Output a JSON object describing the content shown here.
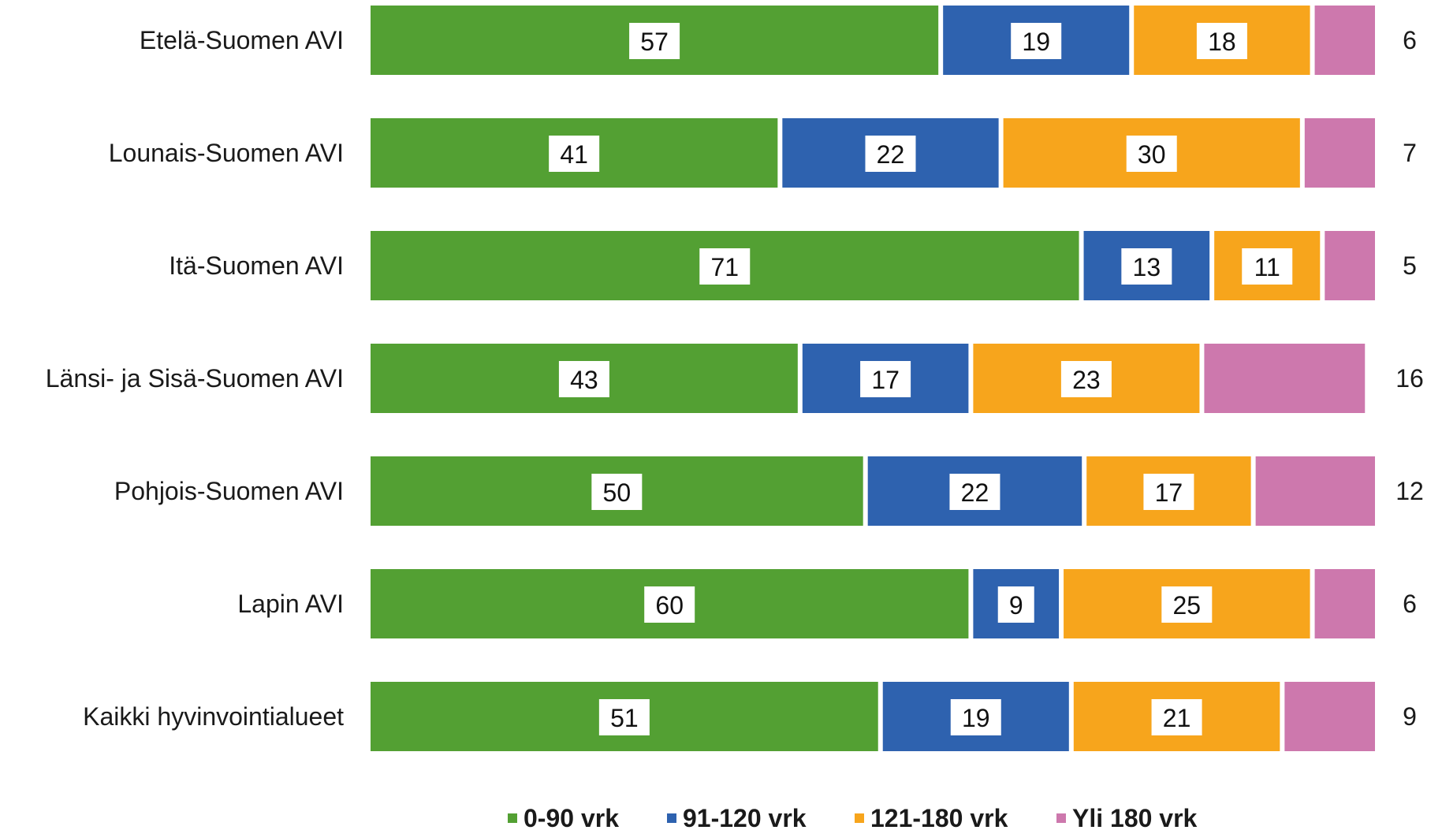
{
  "chart_data": {
    "type": "bar",
    "orientation": "horizontal",
    "stacked": "percent",
    "title": "",
    "xlabel": "",
    "ylabel": "",
    "xlim": [
      0,
      100
    ],
    "grid": false,
    "legend_position": "bottom",
    "categories": [
      "Etelä-Suomen AVI",
      "Lounais-Suomen AVI",
      "Itä-Suomen AVI",
      "Länsi- ja Sisä-Suomen AVI",
      "Pohjois-Suomen AVI",
      "Lapin AVI",
      "Kaikki hyvinvointialueet"
    ],
    "series": [
      {
        "name": "0-90 vrk",
        "color": "#53a033",
        "values": [
          57,
          41,
          71,
          43,
          50,
          60,
          51
        ],
        "labels": [
          "57",
          "41",
          "71",
          "43",
          "50",
          "60",
          "51"
        ],
        "label_position": "inside"
      },
      {
        "name": "91-120 vrk",
        "color": "#2e62af",
        "values": [
          19,
          22,
          13,
          17,
          22,
          9,
          19
        ],
        "labels": [
          "19",
          "22",
          "13",
          "17",
          "22",
          "9",
          "19"
        ],
        "label_position": "inside"
      },
      {
        "name": "121-180 vrk",
        "color": "#f7a51c",
        "values": [
          18,
          30,
          11,
          23,
          17,
          25,
          21
        ],
        "labels": [
          "18",
          "30",
          "11",
          "23",
          "17",
          "25",
          "21"
        ],
        "label_position": "inside"
      },
      {
        "name": "Yli 180 vrk",
        "color": "#cd78ad",
        "values": [
          6,
          7,
          5,
          16,
          12,
          6,
          9
        ],
        "labels": [
          "6",
          "7",
          "5",
          "16",
          "12",
          "6",
          "9"
        ],
        "label_position": "outside-end"
      }
    ]
  }
}
